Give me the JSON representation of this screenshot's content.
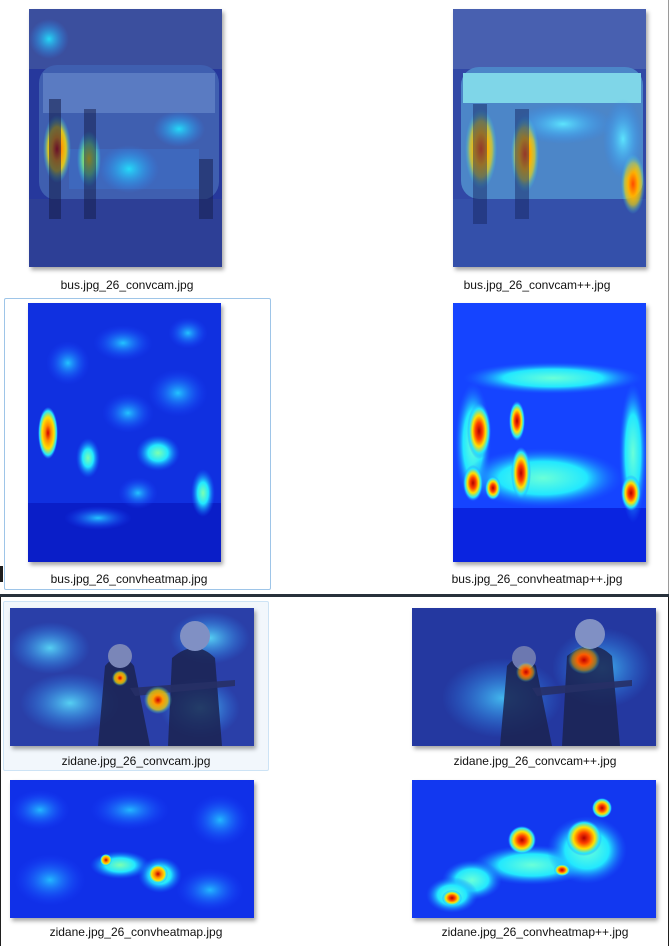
{
  "files": [
    {
      "name": "bus.jpg_26_convcam.jpg",
      "kind": "cam-overlay"
    },
    {
      "name": "bus.jpg_26_convcam++.jpg",
      "kind": "cam-overlay"
    },
    {
      "name": "bus.jpg_26_convheatmap.jpg",
      "kind": "heatmap",
      "selected": true
    },
    {
      "name": "bus.jpg_26_convheatmap++.jpg",
      "kind": "heatmap"
    },
    {
      "name": "zidane.jpg_26_convcam.jpg",
      "kind": "cam-overlay",
      "hover": true
    },
    {
      "name": "zidane.jpg_26_convcam++.jpg",
      "kind": "cam-overlay"
    },
    {
      "name": "zidane.jpg_26_convheatmap.jpg",
      "kind": "heatmap"
    },
    {
      "name": "zidane.jpg_26_convheatmap++.jpg",
      "kind": "heatmap"
    }
  ],
  "colors": {
    "jet_low": "#00008f",
    "jet_mid": "#2a8cff",
    "jet_cyan": "#22e8ff",
    "jet_yellow": "#ffe000",
    "jet_red": "#d00000",
    "selection_border": "#9ec5e8",
    "hover_fill": "#f2f7fc"
  }
}
